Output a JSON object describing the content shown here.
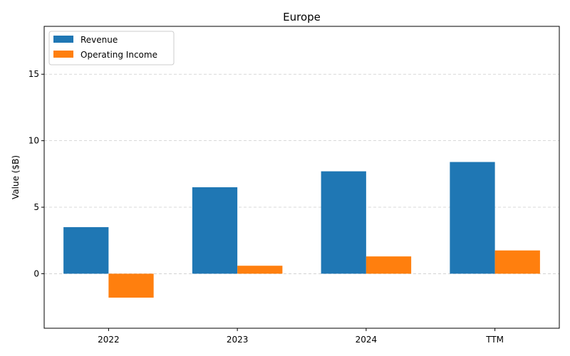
{
  "chart_data": {
    "type": "bar",
    "title": "Europe",
    "xlabel": "",
    "ylabel": "Value ($B)",
    "categories": [
      "2022",
      "2023",
      "2024",
      "TTM"
    ],
    "series": [
      {
        "name": "Revenue",
        "color": "#1f77b4",
        "values": [
          3.5,
          6.5,
          7.7,
          8.4
        ]
      },
      {
        "name": "Operating Income",
        "color": "#ff7f0e",
        "values": [
          -1.8,
          0.6,
          1.3,
          1.75
        ]
      }
    ],
    "ylim": [
      -4.1,
      18.6
    ],
    "yticks": [
      0,
      5,
      10,
      15
    ],
    "grid": "y-dashed",
    "legend_position": "top-left"
  }
}
